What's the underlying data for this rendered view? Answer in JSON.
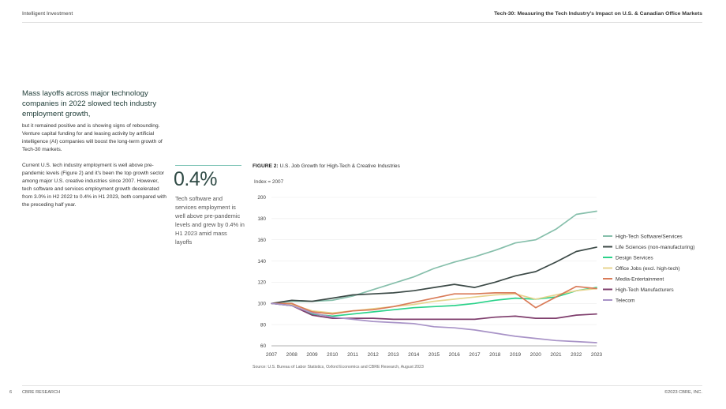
{
  "header": {
    "left": "Intelligent Investment",
    "right": "Tech-30: Measuring the Tech Industry's Impact on U.S. & Canadian Office Markets"
  },
  "intro": {
    "lead": "Mass layoffs across major technology companies in 2022 slowed tech industry employment growth,",
    "body1": "but it remained positive and is showing signs of rebounding. Venture capital funding for and leasing activity by artificial intelligence (AI) companies will boost the long-term growth of Tech-30 markets.",
    "body2": "Current U.S. tech industry employment is well above pre-pandemic levels (Figure 2) and it's been the top growth sector among major U.S. creative industries since 2007. However, tech software and services employment growth decelerated from 3.0% in H2 2022 to 0.4% in H1 2023, both compared with the preceding half year."
  },
  "callout": {
    "value": "0.4%",
    "text": "Tech software and services employment is well above pre-pandemic levels and grew by 0.4% in H1 2023 amid mass layoffs"
  },
  "figure": {
    "label": "FIGURE 2:",
    "title": "U.S. Job Growth for High-Tech & Creative Industries",
    "source": "Source: U.S. Bureau of Labor Statistics, Oxford Economics and CBRE Research, August 2023"
  },
  "chart_data": {
    "type": "line",
    "ylabel": "Index = 2007",
    "ylim": [
      60,
      200
    ],
    "yticks": [
      "60",
      "80",
      "100",
      "120",
      "140",
      "160",
      "180",
      "200"
    ],
    "x": [
      "2007",
      "2008",
      "2009",
      "2010",
      "2011",
      "2012",
      "2013",
      "2014",
      "2015",
      "2016",
      "2017",
      "2018",
      "2019",
      "2020",
      "2021",
      "2022",
      "2023"
    ],
    "legend_position": "right",
    "series": [
      {
        "name": "High-Tech Software/Services",
        "color": "#86bfab",
        "values": [
          100,
          102,
          102,
          103,
          107,
          113,
          119,
          125,
          133,
          139,
          144,
          150,
          157,
          160,
          170,
          184,
          187
        ]
      },
      {
        "name": "Life Sciences (non-manufacturing)",
        "color": "#3c4a47",
        "values": [
          100,
          103,
          102,
          105,
          108,
          109,
          110,
          112,
          115,
          118,
          115,
          120,
          126,
          130,
          139,
          149,
          153
        ]
      },
      {
        "name": "Design Services",
        "color": "#2bd28a",
        "values": [
          100,
          98,
          90,
          88,
          90,
          92,
          94,
          96,
          97,
          98,
          100,
          103,
          105,
          104,
          106,
          112,
          115
        ]
      },
      {
        "name": "Office Jobs (excl. high-tech)",
        "color": "#e7d48f",
        "values": [
          100,
          99,
          93,
          91,
          93,
          95,
          97,
          99,
          102,
          104,
          106,
          108,
          109,
          104,
          108,
          112,
          114
        ]
      },
      {
        "name": "Media-Entertainment",
        "color": "#d97b58",
        "values": [
          100,
          100,
          92,
          90,
          93,
          94,
          97,
          101,
          105,
          109,
          109,
          110,
          110,
          96,
          106,
          116,
          114
        ]
      },
      {
        "name": "High-Tech Manufacturers",
        "color": "#7f3e6d",
        "values": [
          100,
          98,
          89,
          86,
          86,
          86,
          85,
          85,
          85,
          85,
          85,
          87,
          88,
          86,
          86,
          89,
          90
        ]
      },
      {
        "name": "Telecom",
        "color": "#a893c7",
        "values": [
          100,
          98,
          91,
          87,
          85,
          83,
          82,
          81,
          78,
          77,
          75,
          72,
          69,
          67,
          65,
          64,
          63
        ]
      }
    ]
  },
  "footer": {
    "page": "6",
    "left": "CBRE RESEARCH",
    "right": "©2023 CBRE, INC."
  }
}
